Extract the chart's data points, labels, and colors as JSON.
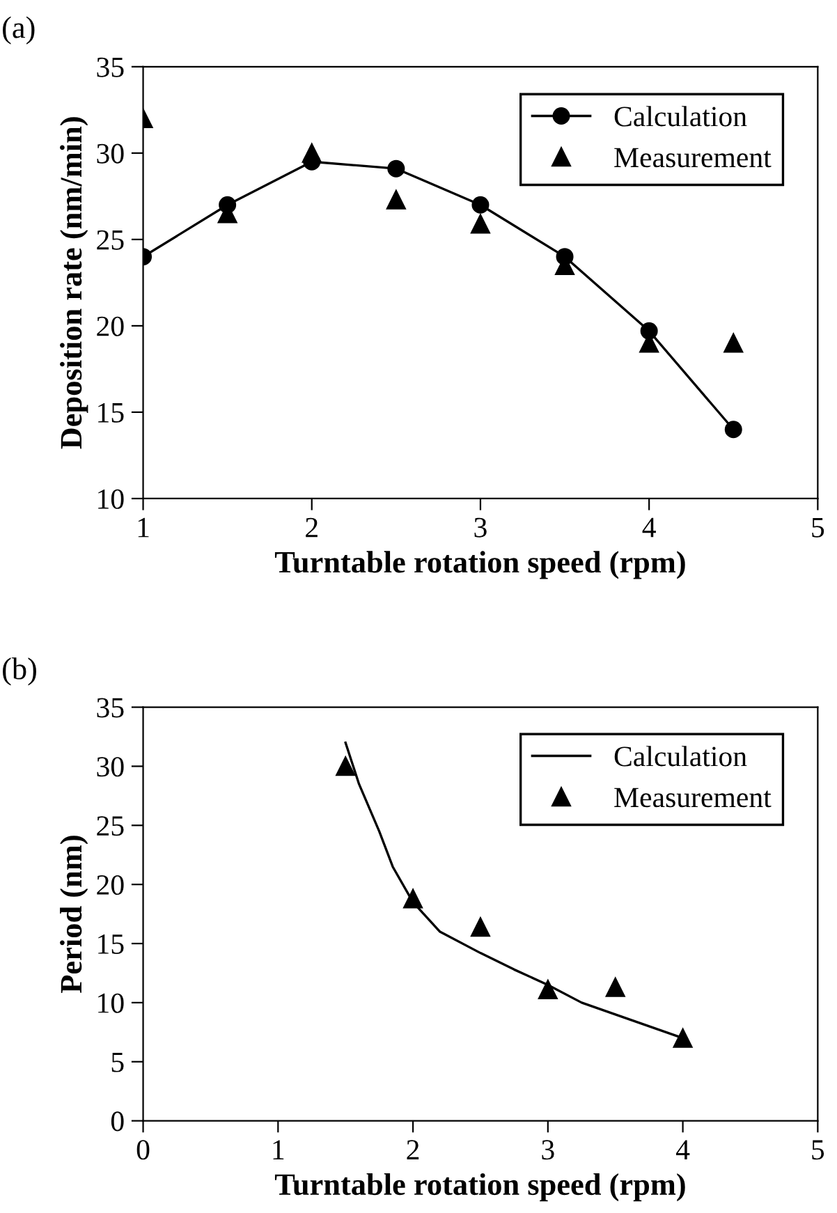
{
  "chart_data": [
    {
      "type": "line",
      "title": "(a)",
      "xlabel": "Turntable rotation speed (rpm)",
      "ylabel": "Deposition rate (nm/min)",
      "xlim": [
        1,
        5
      ],
      "xticks": [
        1,
        2,
        3,
        4,
        5
      ],
      "ylim": [
        10,
        35
      ],
      "yticks": [
        10,
        15,
        20,
        25,
        30,
        35
      ],
      "grid": false,
      "legend": "top right",
      "series": [
        {
          "name": "Calculation",
          "marker": "circle",
          "color": "#000000",
          "x": [
            1,
            1.5,
            2,
            2.5,
            3,
            3.5,
            4,
            4.5
          ],
          "values": [
            24,
            27,
            29.5,
            29.1,
            27,
            24,
            19.7,
            14
          ]
        },
        {
          "name": "Measurement",
          "type": "scatter",
          "marker": "triangle",
          "color": "#000000",
          "x": [
            1,
            1.5,
            2,
            2.5,
            3,
            3.5,
            4,
            4.5
          ],
          "values": [
            32,
            26.5,
            30,
            27.3,
            25.9,
            23.5,
            19,
            19
          ]
        }
      ]
    },
    {
      "type": "line",
      "title": "(b)",
      "xlabel": "Turntable rotation speed (rpm)",
      "ylabel": "Period (nm)",
      "xlim": [
        0,
        5
      ],
      "xticks": [
        0,
        1,
        2,
        3,
        4,
        5
      ],
      "ylim": [
        0,
        35
      ],
      "yticks": [
        0,
        5,
        10,
        15,
        20,
        25,
        30,
        35
      ],
      "grid": false,
      "legend": "top right",
      "series": [
        {
          "name": "Calculation",
          "marker": "none",
          "color": "#000000",
          "x": [
            1.5,
            1.6,
            1.75,
            1.85,
            2,
            2.2,
            2.5,
            2.75,
            3,
            3.25,
            3.5,
            4
          ],
          "values": [
            32,
            28.5,
            24.5,
            21.5,
            18.5,
            16,
            14.2,
            12.8,
            11.5,
            10,
            9,
            7
          ]
        },
        {
          "name": "Measurement",
          "type": "scatter",
          "marker": "triangle",
          "color": "#000000",
          "x": [
            1.5,
            2,
            2.5,
            3,
            3.5,
            4
          ],
          "values": [
            30,
            18.8,
            16.4,
            11.1,
            11.3,
            7
          ]
        }
      ]
    }
  ]
}
